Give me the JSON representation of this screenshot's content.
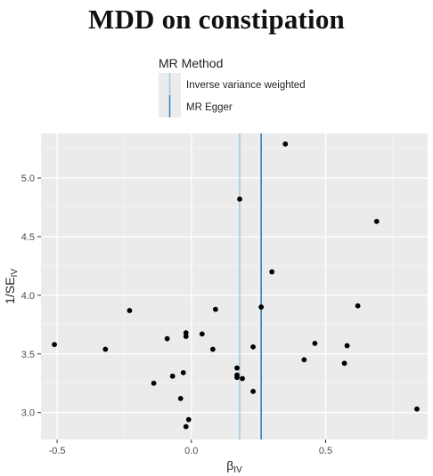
{
  "chart_data": {
    "type": "scatter",
    "title": "MDD on constipation",
    "xlabel": "β",
    "xlabel_sub": "IV",
    "ylabel": "1/SE",
    "ylabel_sub": "IV",
    "xlim": [
      -0.56,
      0.88
    ],
    "ylim": [
      2.77,
      5.38
    ],
    "x_ticks": [
      -0.5,
      0.0,
      0.5
    ],
    "x_tick_labels": [
      "-0.5",
      "0.0",
      "0.5"
    ],
    "y_ticks": [
      3.0,
      3.5,
      4.0,
      4.5,
      5.0
    ],
    "y_tick_labels": [
      "3.0",
      "3.5",
      "4.0",
      "4.5",
      "5.0"
    ],
    "grid": true,
    "legend": {
      "title": "MR Method",
      "placement": "top",
      "entries": [
        {
          "name": "Inverse variance weighted",
          "color": "#9ecae1"
        },
        {
          "name": "MR Egger",
          "color": "#3182bd"
        }
      ]
    },
    "vlines": [
      {
        "method": "Inverse variance weighted",
        "x": 0.18,
        "color": "#9ecae1"
      },
      {
        "method": "MR Egger",
        "x": 0.26,
        "color": "#3182bd"
      }
    ],
    "points": [
      {
        "x": 0.35,
        "y": 5.29
      },
      {
        "x": 0.18,
        "y": 4.82
      },
      {
        "x": 0.69,
        "y": 4.63
      },
      {
        "x": 0.3,
        "y": 4.2
      },
      {
        "x": 0.62,
        "y": 3.91
      },
      {
        "x": 0.26,
        "y": 3.9
      },
      {
        "x": -0.23,
        "y": 3.87
      },
      {
        "x": 0.09,
        "y": 3.88
      },
      {
        "x": 0.04,
        "y": 3.67
      },
      {
        "x": -0.02,
        "y": 3.68
      },
      {
        "x": -0.02,
        "y": 3.65
      },
      {
        "x": -0.09,
        "y": 3.63
      },
      {
        "x": -0.51,
        "y": 3.58
      },
      {
        "x": -0.32,
        "y": 3.54
      },
      {
        "x": 0.08,
        "y": 3.54
      },
      {
        "x": 0.23,
        "y": 3.56
      },
      {
        "x": 0.46,
        "y": 3.59
      },
      {
        "x": 0.58,
        "y": 3.57
      },
      {
        "x": 0.42,
        "y": 3.45
      },
      {
        "x": 0.57,
        "y": 3.42
      },
      {
        "x": 0.17,
        "y": 3.38
      },
      {
        "x": 0.17,
        "y": 3.32
      },
      {
        "x": 0.17,
        "y": 3.3
      },
      {
        "x": 0.19,
        "y": 3.29
      },
      {
        "x": -0.03,
        "y": 3.34
      },
      {
        "x": -0.07,
        "y": 3.31
      },
      {
        "x": -0.14,
        "y": 3.25
      },
      {
        "x": 0.23,
        "y": 3.18
      },
      {
        "x": -0.04,
        "y": 3.12
      },
      {
        "x": -0.01,
        "y": 2.94
      },
      {
        "x": -0.02,
        "y": 2.88
      },
      {
        "x": 0.84,
        "y": 3.03
      }
    ]
  }
}
